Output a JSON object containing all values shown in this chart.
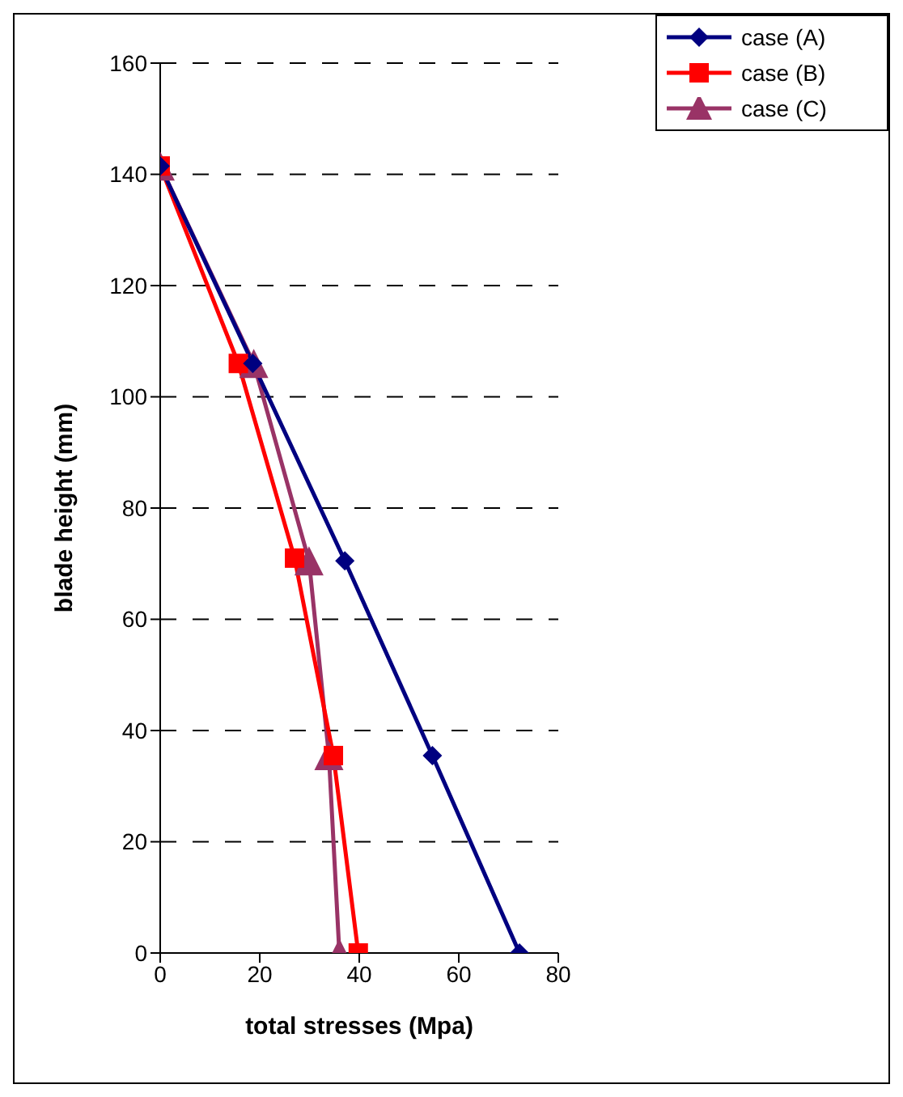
{
  "chart_data": {
    "type": "line",
    "xlabel": "total stresses (Mpa)",
    "ylabel": "blade height (mm)",
    "xlim": [
      0,
      80
    ],
    "xticks": [
      0,
      20,
      40,
      60,
      80
    ],
    "ylim": [
      0,
      160
    ],
    "yticks": [
      0,
      20,
      40,
      60,
      80,
      100,
      120,
      140,
      160
    ],
    "grid": "y",
    "legend": "top right",
    "series": [
      {
        "name": "case (A)",
        "color": "#000080",
        "marker": "diamond",
        "x": [
          0,
          18.6,
          37.1,
          54.7,
          72.2
        ],
        "values": [
          141.5,
          106,
          70.5,
          35.5,
          0
        ]
      },
      {
        "name": "case (B)",
        "color": "#ff0000",
        "marker": "square",
        "x": [
          0,
          15.7,
          27,
          34.8,
          39.8
        ],
        "values": [
          141.5,
          106,
          71,
          35.5,
          0
        ]
      },
      {
        "name": "case (C)",
        "color": "#993366",
        "marker": "triangle",
        "x": [
          0,
          18.8,
          29.9,
          33.9,
          36
        ],
        "values": [
          141.5,
          106,
          70.5,
          35.5,
          0
        ]
      }
    ]
  }
}
